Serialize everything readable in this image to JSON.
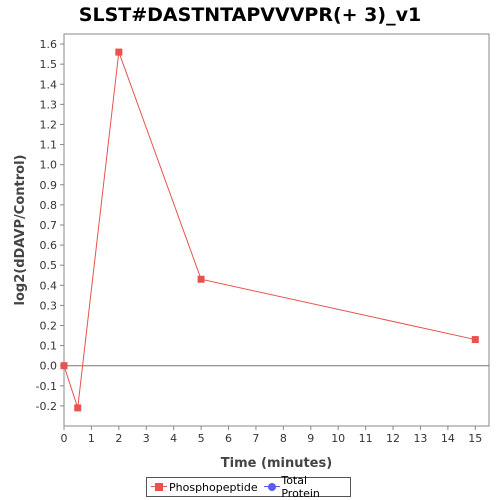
{
  "chart_data": {
    "type": "line",
    "title": "SLST#DASTNTAPVVVPR(+ 3)_v1",
    "xlabel": "Time (minutes)",
    "ylabel": "log2(dDAVP/Control)",
    "xlim": [
      0,
      15.5
    ],
    "ylim": [
      -0.3,
      1.65
    ],
    "xticks": [
      0,
      1,
      2,
      3,
      4,
      5,
      6,
      7,
      8,
      9,
      10,
      11,
      12,
      13,
      14,
      15
    ],
    "yticks": [
      -0.2,
      -0.1,
      0.0,
      0.1,
      0.2,
      0.3,
      0.4,
      0.5,
      0.6,
      0.7,
      0.8,
      0.9,
      1.0,
      1.1,
      1.2,
      1.3,
      1.4,
      1.5,
      1.6
    ],
    "ytick_labels": [
      "-0.2",
      "-0.1",
      "0.0",
      "0.1",
      "0.2",
      "0.3",
      "0.4",
      "0.5",
      "0.6",
      "0.7",
      "0.8",
      "0.9",
      "1.0",
      "1.1",
      "1.2",
      "1.3",
      "1.4",
      "1.5",
      "1.6"
    ],
    "series": [
      {
        "name": "Phosphopeptide",
        "color": "#e8524f",
        "marker": "square",
        "x": [
          0,
          0.5,
          2,
          5,
          15
        ],
        "y": [
          0.0,
          -0.21,
          1.56,
          0.43,
          0.13
        ]
      }
    ],
    "legend": {
      "position": "bottom-center",
      "entries": [
        {
          "name": "Phosphopeptide",
          "color": "#e8524f",
          "marker": "square"
        },
        {
          "name": "Total Protein",
          "color": "#5b5bef",
          "marker": "circle"
        }
      ]
    },
    "zero_line": true,
    "grid": false
  }
}
